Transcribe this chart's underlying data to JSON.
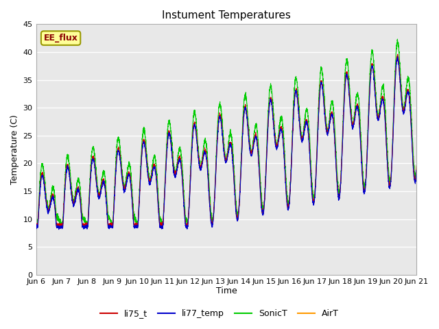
{
  "title": "Instument Temperatures",
  "ylabel": "Temperature (C)",
  "xlabel": "Time",
  "ylim": [
    0,
    45
  ],
  "legend_labels": [
    "li75_t",
    "li77_temp",
    "SonicT",
    "AirT"
  ],
  "line_colors": [
    "#cc0000",
    "#0000cc",
    "#00cc00",
    "#ff9900"
  ],
  "annotation_text": "EE_flux",
  "annotation_bg": "#ffff99",
  "annotation_border": "#999900",
  "plot_bg": "#e8e8e8",
  "grid_color": "#ffffff",
  "xtick_labels": [
    "Jun 6",
    "Jun 7",
    "Jun 8",
    "Jun 9",
    "Jun 10",
    "Jun 11",
    "Jun 12",
    "Jun 13",
    "Jun 14",
    "Jun 15",
    "Jun 16",
    "Jun 17",
    "Jun 18",
    "Jun 19",
    "Jun 20",
    "Jun 21"
  ],
  "n_days": 15,
  "points_per_day": 288
}
